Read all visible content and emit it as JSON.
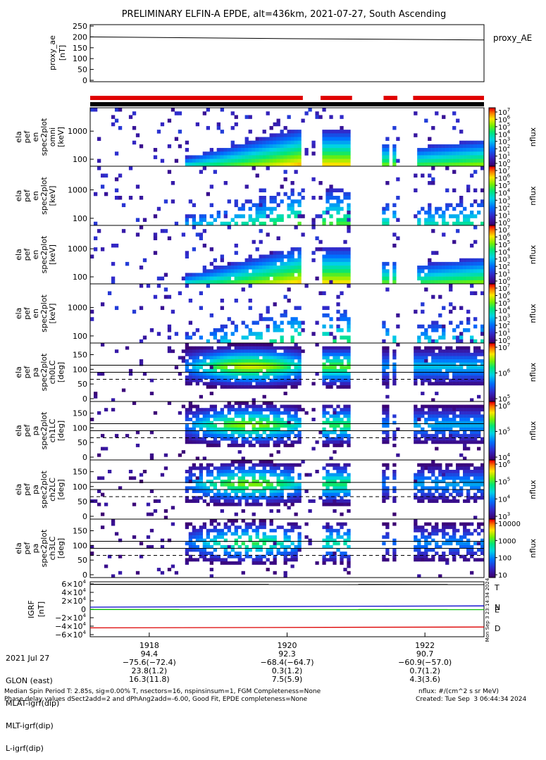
{
  "title": "PRELIMINARY ELFIN-A EPDE, alt=436km, 2021-07-27, South Ascending",
  "colors": {
    "red_bar": "#e00000",
    "black_bar": "#000000",
    "trace_T": "#000000",
    "trace_N": "#0000cc",
    "trace_E": "#00bb00",
    "trace_D": "#dd0000"
  },
  "chart_data": [
    {
      "id": "proxy_ae",
      "type": "line",
      "ylabel": "proxy_ae\n[nT]",
      "yticks": [
        "250",
        "200",
        "150",
        "100",
        "50",
        "0"
      ],
      "ylim": [
        0,
        250
      ],
      "legend": "proxy_AE",
      "x": [
        0,
        0.25,
        0.5,
        0.75,
        1.0
      ],
      "y": [
        200,
        196,
        192,
        189,
        186
      ]
    },
    {
      "id": "coverage",
      "type": "bar",
      "segments": [
        [
          0.0,
          0.54
        ],
        [
          0.585,
          0.665
        ],
        [
          0.745,
          0.78
        ],
        [
          0.82,
          1.0
        ]
      ]
    },
    {
      "id": "pef-en-1",
      "type": "heatmap",
      "ylabel": [
        "ela",
        "pef",
        "en",
        "spec2plot",
        "omni",
        "[keV]"
      ],
      "yticks": [
        "1000",
        "100"
      ],
      "cbar_ticks": [
        "10",
        "10",
        "10",
        "10",
        "10",
        "10",
        "10",
        "10"
      ],
      "cbar_exp": [
        "7",
        "6",
        "5",
        "4",
        "3",
        "2",
        "1",
        "0"
      ],
      "cbar_label": "nflux"
    },
    {
      "id": "pef-en-2",
      "type": "heatmap",
      "ylabel": [
        "ela",
        "pef",
        "en",
        "spec2plot",
        "[keV]"
      ],
      "yticks": [
        "1000",
        "100"
      ],
      "cbar_ticks": [
        "10",
        "10",
        "10",
        "10",
        "10",
        "10",
        "10",
        "10"
      ],
      "cbar_exp": [
        "7",
        "6",
        "5",
        "4",
        "3",
        "2",
        "1",
        "0"
      ],
      "cbar_label": "nflux"
    },
    {
      "id": "pef-en-3",
      "type": "heatmap",
      "ylabel": [
        "ela",
        "pef",
        "en",
        "spec2plot",
        "[keV]"
      ],
      "yticks": [
        "1000",
        "100"
      ],
      "cbar_ticks": [
        "10",
        "10",
        "10",
        "10",
        "10",
        "10",
        "10",
        "10"
      ],
      "cbar_exp": [
        "7",
        "6",
        "5",
        "4",
        "3",
        "2",
        "1",
        "0"
      ],
      "cbar_label": "nflux"
    },
    {
      "id": "pef-en-4",
      "type": "heatmap",
      "ylabel": [
        "ela",
        "pef",
        "en",
        "spec2plot",
        "[keV]"
      ],
      "yticks": [
        "1000",
        "100"
      ],
      "cbar_ticks": [
        "10",
        "10",
        "10",
        "10",
        "10",
        "10",
        "10",
        "10"
      ],
      "cbar_exp": [
        "7",
        "6",
        "5",
        "4",
        "3",
        "2",
        "1",
        "0"
      ],
      "cbar_label": "nflux"
    },
    {
      "id": "pa-ch0",
      "type": "heatmap",
      "ylabel": [
        "ela",
        "pef",
        "pa",
        "spec2plot",
        "ch0LC",
        "[deg]"
      ],
      "yticks": [
        "150",
        "100",
        "50",
        "0"
      ],
      "cbar_ticks": [
        "10",
        "10",
        "10"
      ],
      "cbar_exp": [
        "7",
        "6",
        "5"
      ],
      "cbar_label": "nflux"
    },
    {
      "id": "pa-ch1",
      "type": "heatmap",
      "ylabel": [
        "ela",
        "pef",
        "pa",
        "spec2plot",
        "ch1LC",
        "[deg]"
      ],
      "yticks": [
        "150",
        "100",
        "50",
        "0"
      ],
      "cbar_ticks": [
        "10",
        "10",
        "10"
      ],
      "cbar_exp": [
        "6",
        "5",
        "4"
      ],
      "cbar_label": "nflux"
    },
    {
      "id": "pa-ch2",
      "type": "heatmap",
      "ylabel": [
        "ela",
        "pef",
        "pa",
        "spec2plot",
        "ch2LC",
        "[deg]"
      ],
      "yticks": [
        "150",
        "100",
        "50",
        "0"
      ],
      "cbar_ticks": [
        "10",
        "10",
        "10",
        "10"
      ],
      "cbar_exp": [
        "6",
        "5",
        "4",
        "3"
      ],
      "cbar_label": "nflux"
    },
    {
      "id": "pa-ch3",
      "type": "heatmap",
      "ylabel": [
        "ela",
        "pef",
        "pa",
        "spec2plot",
        "ch3LC",
        "[deg]"
      ],
      "yticks": [
        "150",
        "100",
        "50",
        "0"
      ],
      "cbar_ticks": [
        "10000",
        "1000",
        "100",
        "10"
      ],
      "cbar_label": "nflux"
    },
    {
      "id": "igrf",
      "type": "line",
      "ylabel": "IGRF\n[nT]",
      "ytick_mant": [
        "6×10",
        "4×10",
        "2×10",
        "0",
        "−2×10",
        "−4×10",
        "−6×10"
      ],
      "ytick_exp": [
        "4",
        "4",
        "4",
        "",
        "4",
        "4",
        "4"
      ],
      "ylim": [
        -60000,
        60000
      ],
      "series": [
        {
          "name": "T",
          "color": "#000000",
          "x": [
            0,
            1
          ],
          "y": [
            59000,
            58500
          ]
        },
        {
          "name": "N",
          "color": "#0000cc",
          "x": [
            0,
            1
          ],
          "y": [
            5000,
            8000
          ]
        },
        {
          "name": "E",
          "color": "#00bb00",
          "x": [
            0,
            1
          ],
          "y": [
            -500,
            -800
          ]
        },
        {
          "name": "D",
          "color": "#dd0000",
          "x": [
            0,
            1
          ],
          "y": [
            -44000,
            -42000
          ]
        }
      ],
      "side_text": "Mon Sep  3 23:14:34 2024"
    }
  ],
  "xaxis": {
    "ticks": [
      {
        "label": "1918",
        "glon": "94.4",
        "mlat": "−75.6(−72.4)",
        "mlt": "23.8(1.2)",
        "l": "16.3(11.8)",
        "pos": 0.15
      },
      {
        "label": "1920",
        "glon": "92.3",
        "mlat": "−68.4(−64.7)",
        "mlt": "0.3(1.2)",
        "l": "7.5(5.9)",
        "pos": 0.5
      },
      {
        "label": "1922",
        "glon": "90.7",
        "mlat": "−60.9(−57.0)",
        "mlt": "0.7(1.2)",
        "l": "4.3(3.6)",
        "pos": 0.85
      }
    ],
    "row_labels": [
      "2021 Jul 27",
      "GLON (east)",
      "MLAT-igrf(dip)",
      "MLT-igrf(dip)",
      "L-igrf(dip)"
    ]
  },
  "footer": {
    "line1": "Median Spin Period T: 2.85s, sig=0.00% T, nsectors=16, nspinsinsum=1, FGM Completeness=None",
    "line2": "Phase delay values dSect2add=2 and dPhAng2add=-6.00, Good Fit, EPDE completeness=None",
    "units": "nflux: #/(cm^2 s sr MeV)",
    "created": "Created: Tue Sep  3 06:44:34 2024"
  }
}
